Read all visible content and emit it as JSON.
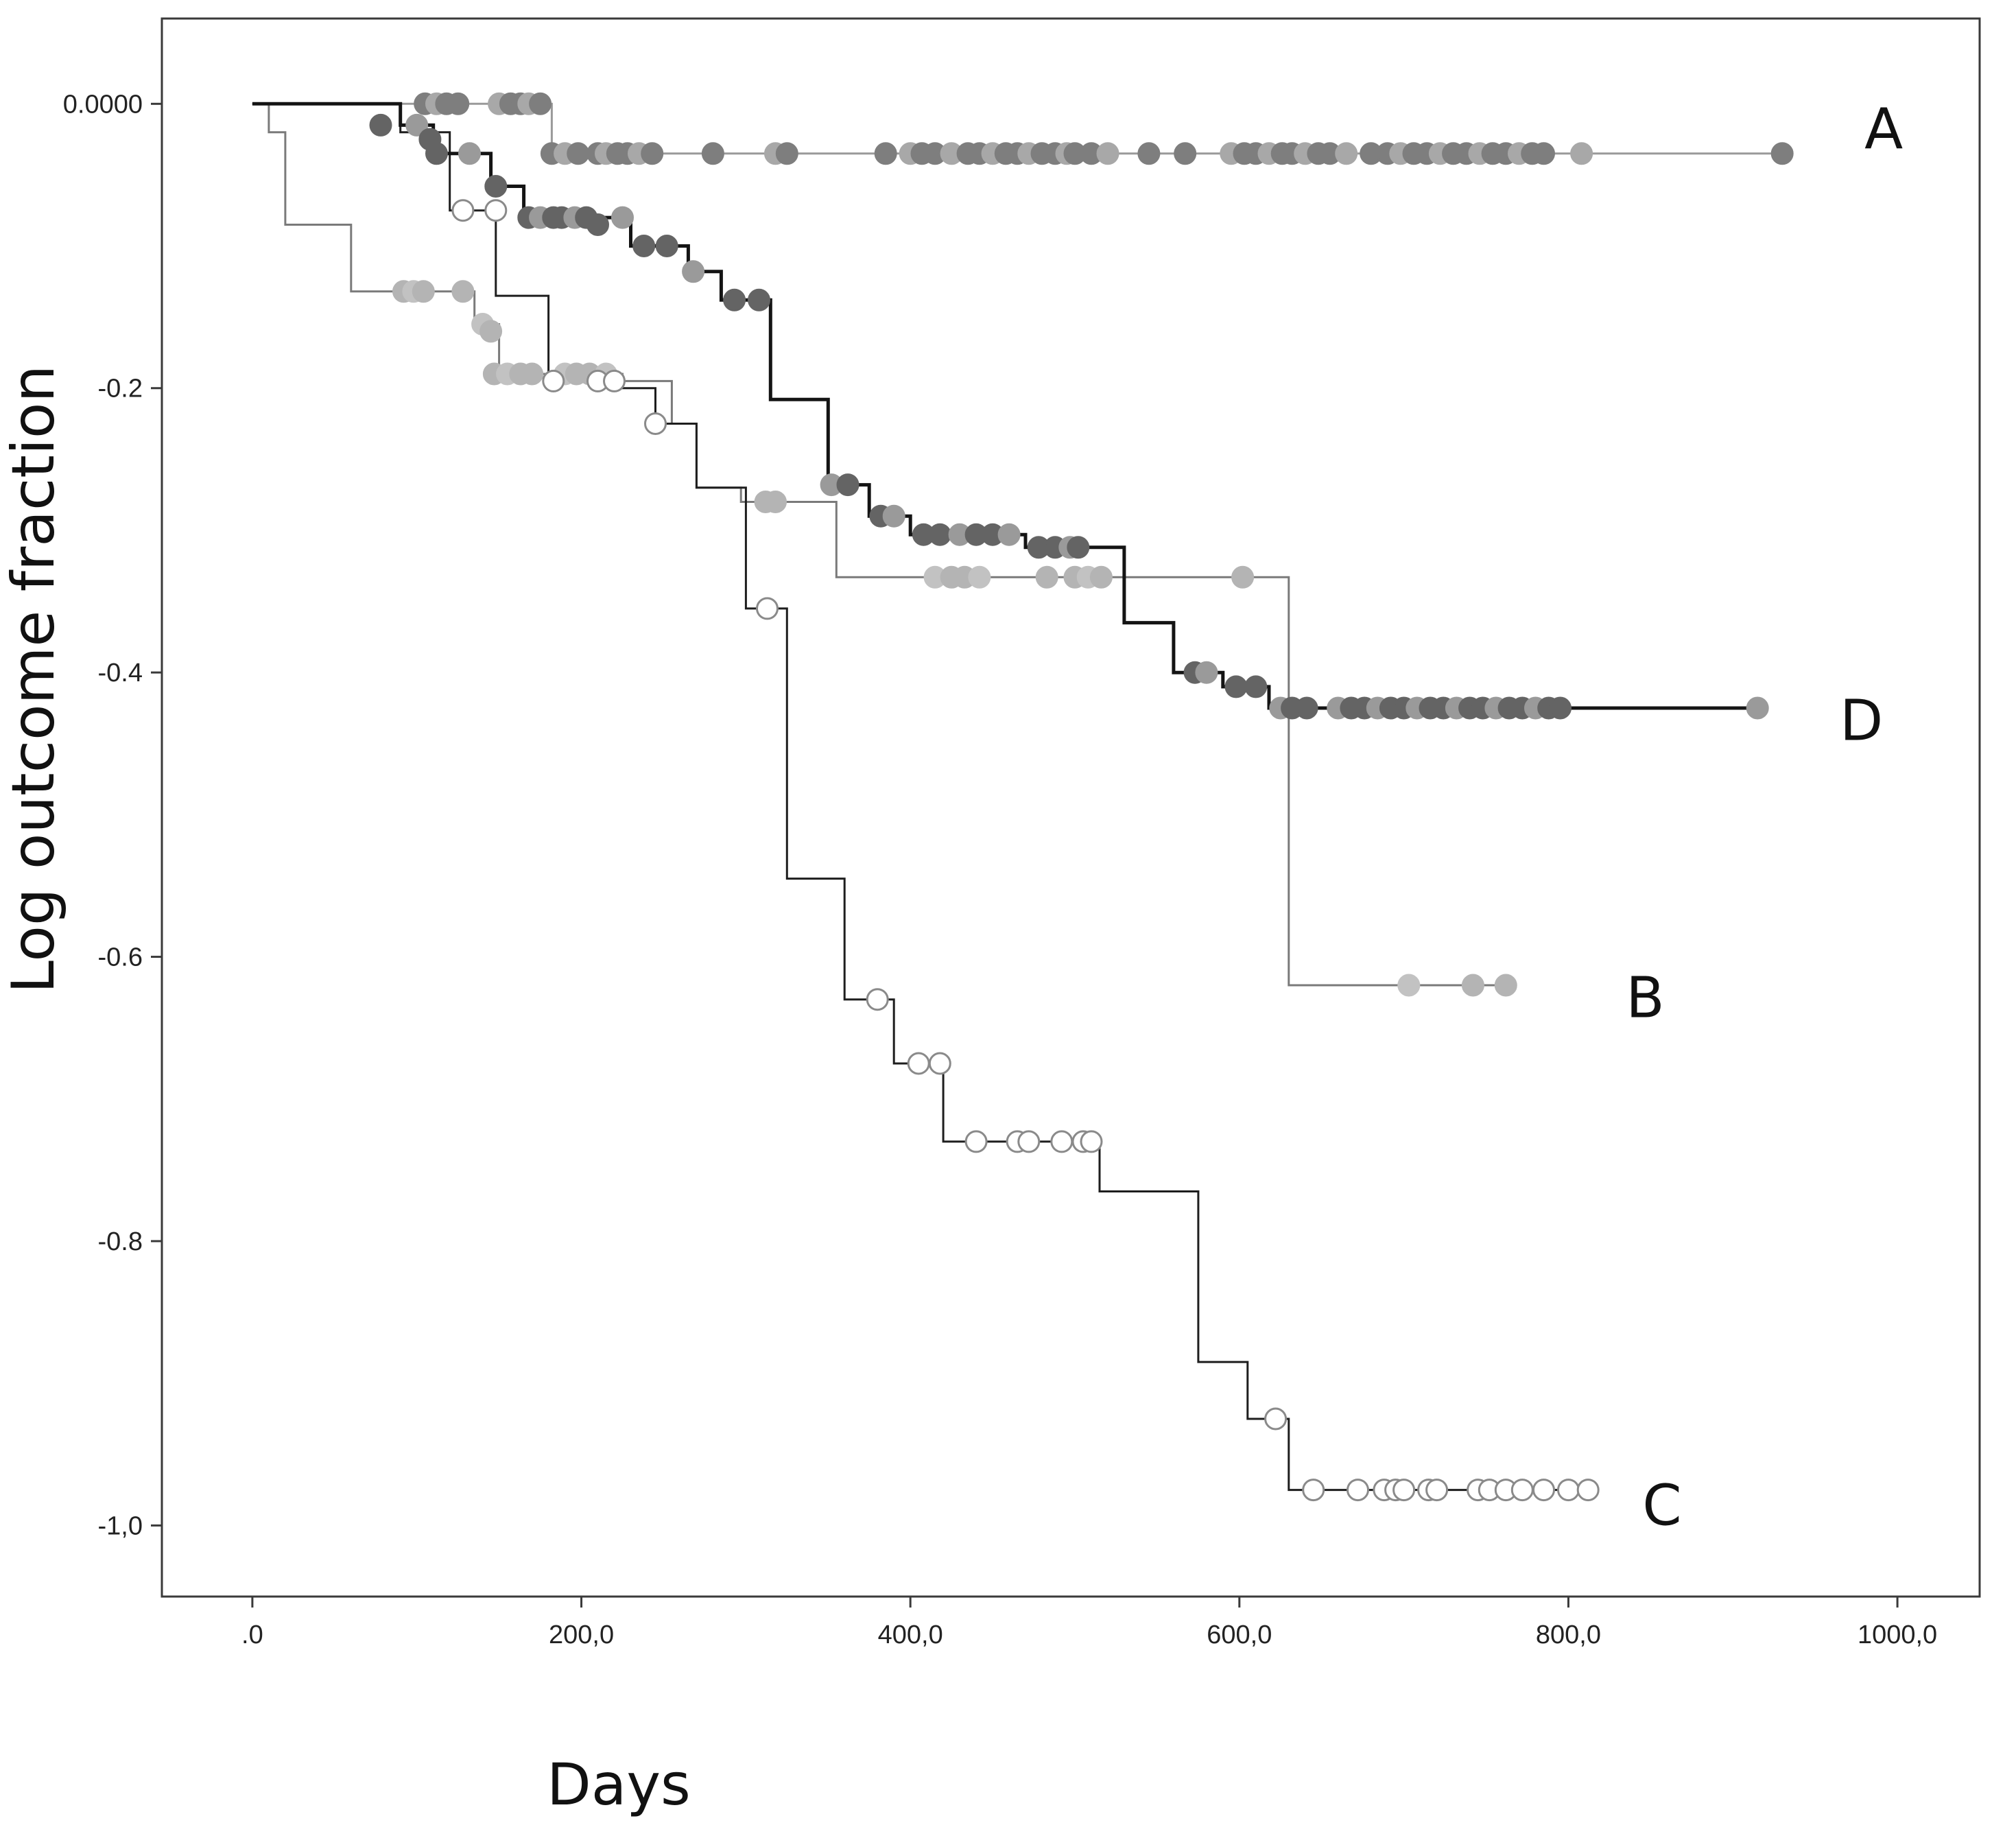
{
  "chart_data": {
    "type": "line",
    "style": "step",
    "title": "",
    "xlabel": "Days",
    "ylabel": "Log outcome fraction",
    "xlim": [
      -55,
      1050
    ],
    "ylim": [
      -1.05,
      0.06
    ],
    "x_ticks": [
      {
        "value": 0,
        "label": ".0"
      },
      {
        "value": 200,
        "label": "200,0"
      },
      {
        "value": 400,
        "label": "400,0"
      },
      {
        "value": 600,
        "label": "600,0"
      },
      {
        "value": 800,
        "label": "800,0"
      },
      {
        "value": 1000,
        "label": "1000,0"
      }
    ],
    "y_ticks": [
      {
        "value": 0,
        "label": "0.0000"
      },
      {
        "value": -0.2,
        "label": "-0.2"
      },
      {
        "value": -0.4,
        "label": "-0.4"
      },
      {
        "value": -0.6,
        "label": "-0.6"
      },
      {
        "value": -0.8,
        "label": "-0.8"
      },
      {
        "value": -1.0,
        "label": "-1,0"
      }
    ],
    "series": [
      {
        "name": "A",
        "line_color": "#9a9a9a",
        "line_width": 3,
        "marker_fill": "#7e7e7e",
        "marker_alt_fill": "#a8a8a8",
        "label_at": {
          "x": 980,
          "y": -0.017
        },
        "steps": [
          [
            0,
            0
          ],
          [
            182,
            0
          ],
          [
            182,
            -0.035
          ],
          [
            930,
            -0.035
          ]
        ],
        "censored": [
          [
            105,
            0
          ],
          [
            112,
            0
          ],
          [
            118,
            0
          ],
          [
            125,
            0
          ],
          [
            150,
            0
          ],
          [
            157,
            0
          ],
          [
            163,
            0
          ],
          [
            168,
            0
          ],
          [
            175,
            0
          ],
          [
            182,
            -0.035
          ],
          [
            190,
            -0.035
          ],
          [
            198,
            -0.035
          ],
          [
            210,
            -0.035
          ],
          [
            215,
            -0.035
          ],
          [
            222,
            -0.035
          ],
          [
            228,
            -0.035
          ],
          [
            235,
            -0.035
          ],
          [
            243,
            -0.035
          ],
          [
            280,
            -0.035
          ],
          [
            318,
            -0.035
          ],
          [
            325,
            -0.035
          ],
          [
            385,
            -0.035
          ],
          [
            400,
            -0.035
          ],
          [
            407,
            -0.035
          ],
          [
            415,
            -0.035
          ],
          [
            425,
            -0.035
          ],
          [
            435,
            -0.035
          ],
          [
            442,
            -0.035
          ],
          [
            450,
            -0.035
          ],
          [
            458,
            -0.035
          ],
          [
            465,
            -0.035
          ],
          [
            472,
            -0.035
          ],
          [
            480,
            -0.035
          ],
          [
            488,
            -0.035
          ],
          [
            495,
            -0.035
          ],
          [
            500,
            -0.035
          ],
          [
            510,
            -0.035
          ],
          [
            520,
            -0.035
          ],
          [
            545,
            -0.035
          ],
          [
            567,
            -0.035
          ],
          [
            595,
            -0.035
          ],
          [
            603,
            -0.035
          ],
          [
            610,
            -0.035
          ],
          [
            618,
            -0.035
          ],
          [
            626,
            -0.035
          ],
          [
            632,
            -0.035
          ],
          [
            640,
            -0.035
          ],
          [
            648,
            -0.035
          ],
          [
            655,
            -0.035
          ],
          [
            665,
            -0.035
          ],
          [
            680,
            -0.035
          ],
          [
            690,
            -0.035
          ],
          [
            698,
            -0.035
          ],
          [
            706,
            -0.035
          ],
          [
            714,
            -0.035
          ],
          [
            722,
            -0.035
          ],
          [
            730,
            -0.035
          ],
          [
            738,
            -0.035
          ],
          [
            746,
            -0.035
          ],
          [
            754,
            -0.035
          ],
          [
            762,
            -0.035
          ],
          [
            770,
            -0.035
          ],
          [
            778,
            -0.035
          ],
          [
            785,
            -0.035
          ],
          [
            808,
            -0.035
          ],
          [
            930,
            -0.035
          ]
        ]
      },
      {
        "name": "B",
        "line_color": "#7a7a7a",
        "line_width": 3,
        "marker_fill": "#b4b4b4",
        "marker_alt_fill": "#c2c2c2",
        "label_at": {
          "x": 835,
          "y": -0.628
        },
        "steps": [
          [
            0,
            0
          ],
          [
            10,
            0
          ],
          [
            10,
            -0.02
          ],
          [
            20,
            -0.02
          ],
          [
            20,
            -0.085
          ],
          [
            60,
            -0.085
          ],
          [
            60,
            -0.132
          ],
          [
            135,
            -0.132
          ],
          [
            135,
            -0.155
          ],
          [
            150,
            -0.155
          ],
          [
            150,
            -0.19
          ],
          [
            225,
            -0.19
          ],
          [
            225,
            -0.195
          ],
          [
            255,
            -0.195
          ],
          [
            255,
            -0.225
          ],
          [
            270,
            -0.225
          ],
          [
            270,
            -0.27
          ],
          [
            297,
            -0.27
          ],
          [
            297,
            -0.28
          ],
          [
            355,
            -0.28
          ],
          [
            355,
            -0.333
          ],
          [
            630,
            -0.333
          ],
          [
            630,
            -0.62
          ],
          [
            762,
            -0.62
          ]
        ],
        "censored": [
          [
            92,
            -0.132
          ],
          [
            98,
            -0.132
          ],
          [
            104,
            -0.132
          ],
          [
            128,
            -0.132
          ],
          [
            140,
            -0.155
          ],
          [
            145,
            -0.16
          ],
          [
            147,
            -0.19
          ],
          [
            155,
            -0.19
          ],
          [
            163,
            -0.19
          ],
          [
            170,
            -0.19
          ],
          [
            190,
            -0.19
          ],
          [
            197,
            -0.19
          ],
          [
            205,
            -0.19
          ],
          [
            215,
            -0.19
          ],
          [
            312,
            -0.28
          ],
          [
            318,
            -0.28
          ],
          [
            415,
            -0.333
          ],
          [
            425,
            -0.333
          ],
          [
            433,
            -0.333
          ],
          [
            442,
            -0.333
          ],
          [
            483,
            -0.333
          ],
          [
            500,
            -0.333
          ],
          [
            508,
            -0.333
          ],
          [
            516,
            -0.333
          ],
          [
            602,
            -0.333
          ],
          [
            703,
            -0.62
          ],
          [
            742,
            -0.62
          ],
          [
            762,
            -0.62
          ]
        ]
      },
      {
        "name": "C",
        "line_color": "#1e1e1e",
        "line_width": 3,
        "marker_fill": "#ffffff",
        "marker_alt_fill": "#ffffff",
        "marker_stroke": "#8a8a8a",
        "label_at": {
          "x": 845,
          "y": -0.985
        },
        "steps": [
          [
            0,
            0
          ],
          [
            90,
            0
          ],
          [
            90,
            -0.02
          ],
          [
            120,
            -0.02
          ],
          [
            120,
            -0.075
          ],
          [
            148,
            -0.075
          ],
          [
            148,
            -0.135
          ],
          [
            180,
            -0.135
          ],
          [
            180,
            -0.195
          ],
          [
            225,
            -0.195
          ],
          [
            225,
            -0.2
          ],
          [
            245,
            -0.2
          ],
          [
            245,
            -0.225
          ],
          [
            270,
            -0.225
          ],
          [
            270,
            -0.27
          ],
          [
            300,
            -0.27
          ],
          [
            300,
            -0.355
          ],
          [
            325,
            -0.355
          ],
          [
            325,
            -0.545
          ],
          [
            360,
            -0.545
          ],
          [
            360,
            -0.63
          ],
          [
            390,
            -0.63
          ],
          [
            390,
            -0.675
          ],
          [
            420,
            -0.675
          ],
          [
            420,
            -0.73
          ],
          [
            515,
            -0.73
          ],
          [
            515,
            -0.765
          ],
          [
            575,
            -0.765
          ],
          [
            575,
            -0.885
          ],
          [
            605,
            -0.885
          ],
          [
            605,
            -0.925
          ],
          [
            630,
            -0.925
          ],
          [
            630,
            -0.975
          ],
          [
            812,
            -0.975
          ]
        ],
        "censored": [
          [
            128,
            -0.075
          ],
          [
            148,
            -0.075
          ],
          [
            183,
            -0.195
          ],
          [
            210,
            -0.195
          ],
          [
            220,
            -0.195
          ],
          [
            245,
            -0.225
          ],
          [
            313,
            -0.355
          ],
          [
            380,
            -0.63
          ],
          [
            405,
            -0.675
          ],
          [
            418,
            -0.675
          ],
          [
            440,
            -0.73
          ],
          [
            465,
            -0.73
          ],
          [
            472,
            -0.73
          ],
          [
            492,
            -0.73
          ],
          [
            505,
            -0.73
          ],
          [
            510,
            -0.73
          ],
          [
            622,
            -0.925
          ],
          [
            645,
            -0.975
          ],
          [
            672,
            -0.975
          ],
          [
            688,
            -0.975
          ],
          [
            695,
            -0.975
          ],
          [
            700,
            -0.975
          ],
          [
            715,
            -0.975
          ],
          [
            720,
            -0.975
          ],
          [
            745,
            -0.975
          ],
          [
            752,
            -0.975
          ],
          [
            762,
            -0.975
          ],
          [
            772,
            -0.975
          ],
          [
            785,
            -0.975
          ],
          [
            800,
            -0.975
          ],
          [
            812,
            -0.975
          ]
        ]
      },
      {
        "name": "D",
        "line_color": "#141414",
        "line_width": 5,
        "marker_fill": "#646464",
        "marker_alt_fill": "#9a9a9a",
        "label_at": {
          "x": 965,
          "y": -0.433
        },
        "steps": [
          [
            0,
            0
          ],
          [
            90,
            0
          ],
          [
            90,
            -0.015
          ],
          [
            110,
            -0.015
          ],
          [
            110,
            -0.035
          ],
          [
            145,
            -0.035
          ],
          [
            145,
            -0.058
          ],
          [
            165,
            -0.058
          ],
          [
            165,
            -0.08
          ],
          [
            230,
            -0.08
          ],
          [
            230,
            -0.1
          ],
          [
            265,
            -0.1
          ],
          [
            265,
            -0.118
          ],
          [
            285,
            -0.118
          ],
          [
            285,
            -0.138
          ],
          [
            315,
            -0.138
          ],
          [
            315,
            -0.208
          ],
          [
            350,
            -0.208
          ],
          [
            350,
            -0.268
          ],
          [
            375,
            -0.268
          ],
          [
            375,
            -0.29
          ],
          [
            400,
            -0.29
          ],
          [
            400,
            -0.303
          ],
          [
            470,
            -0.303
          ],
          [
            470,
            -0.312
          ],
          [
            530,
            -0.312
          ],
          [
            530,
            -0.365
          ],
          [
            560,
            -0.365
          ],
          [
            560,
            -0.4
          ],
          [
            590,
            -0.4
          ],
          [
            590,
            -0.41
          ],
          [
            618,
            -0.41
          ],
          [
            618,
            -0.425
          ],
          [
            915,
            -0.425
          ]
        ],
        "censored": [
          [
            78,
            -0.015
          ],
          [
            100,
            -0.015
          ],
          [
            108,
            -0.025
          ],
          [
            112,
            -0.035
          ],
          [
            132,
            -0.035
          ],
          [
            148,
            -0.058
          ],
          [
            168,
            -0.08
          ],
          [
            175,
            -0.08
          ],
          [
            183,
            -0.08
          ],
          [
            188,
            -0.08
          ],
          [
            196,
            -0.08
          ],
          [
            203,
            -0.08
          ],
          [
            210,
            -0.085
          ],
          [
            225,
            -0.08
          ],
          [
            238,
            -0.1
          ],
          [
            252,
            -0.1
          ],
          [
            268,
            -0.118
          ],
          [
            293,
            -0.138
          ],
          [
            308,
            -0.138
          ],
          [
            352,
            -0.268
          ],
          [
            362,
            -0.268
          ],
          [
            382,
            -0.29
          ],
          [
            390,
            -0.29
          ],
          [
            408,
            -0.303
          ],
          [
            418,
            -0.303
          ],
          [
            430,
            -0.303
          ],
          [
            440,
            -0.303
          ],
          [
            450,
            -0.303
          ],
          [
            460,
            -0.303
          ],
          [
            478,
            -0.312
          ],
          [
            488,
            -0.312
          ],
          [
            497,
            -0.312
          ],
          [
            502,
            -0.312
          ],
          [
            573,
            -0.4
          ],
          [
            580,
            -0.4
          ],
          [
            598,
            -0.41
          ],
          [
            610,
            -0.41
          ],
          [
            625,
            -0.425
          ],
          [
            632,
            -0.425
          ],
          [
            641,
            -0.425
          ],
          [
            660,
            -0.425
          ],
          [
            668,
            -0.425
          ],
          [
            676,
            -0.425
          ],
          [
            684,
            -0.425
          ],
          [
            692,
            -0.425
          ],
          [
            700,
            -0.425
          ],
          [
            708,
            -0.425
          ],
          [
            716,
            -0.425
          ],
          [
            724,
            -0.425
          ],
          [
            732,
            -0.425
          ],
          [
            740,
            -0.425
          ],
          [
            748,
            -0.425
          ],
          [
            756,
            -0.425
          ],
          [
            764,
            -0.425
          ],
          [
            772,
            -0.425
          ],
          [
            780,
            -0.425
          ],
          [
            788,
            -0.425
          ],
          [
            795,
            -0.425
          ],
          [
            915,
            -0.425
          ]
        ]
      }
    ]
  }
}
